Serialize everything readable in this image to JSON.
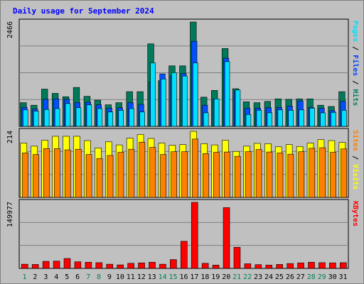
{
  "chart_data": {
    "type": "bar",
    "title": "Daily usage for September 2024",
    "days": [
      "1",
      "2",
      "3",
      "4",
      "5",
      "6",
      "7",
      "8",
      "9",
      "10",
      "11",
      "12",
      "13",
      "14",
      "15",
      "16",
      "17",
      "18",
      "19",
      "20",
      "21",
      "22",
      "23",
      "24",
      "25",
      "26",
      "27",
      "28",
      "29",
      "30",
      "31"
    ],
    "weekend_days": [
      1,
      7,
      8,
      14,
      15,
      21,
      22,
      28,
      29
    ],
    "panels": [
      {
        "id": "pages-files-hits",
        "max_label": "2466",
        "max_value": 2466,
        "side_labels": [
          {
            "text": "Pages",
            "color": "#00e0ff"
          },
          {
            "text": " / ",
            "color": "#000000"
          },
          {
            "text": "Files",
            "color": "#0040ff"
          },
          {
            "text": " / ",
            "color": "#000000"
          },
          {
            "text": "Hits",
            "color": "#008060"
          }
        ],
        "series": [
          {
            "name": "Hits",
            "color": "#007a5a",
            "values": [
              560,
              500,
              880,
              780,
              700,
              920,
              710,
              620,
              510,
              560,
              820,
              820,
              1950,
              1080,
              1430,
              1430,
              2466,
              690,
              850,
              1840,
              890,
              580,
              560,
              590,
              650,
              640,
              650,
              650,
              500,
              470,
              820
            ]
          },
          {
            "name": "Files",
            "color": "#0050ff",
            "values": [
              450,
              410,
              640,
              650,
              640,
              560,
              570,
              510,
              430,
              440,
              560,
              520,
              1050,
              1240,
              1190,
              1250,
              2010,
              500,
              650,
              1610,
              840,
              430,
              430,
              440,
              450,
              480,
              600,
              450,
              430,
              370,
              590
            ]
          },
          {
            "name": "Pages",
            "color": "#00e0ff",
            "values": [
              390,
              360,
              400,
              420,
              540,
              440,
              510,
              420,
              340,
              380,
              420,
              340,
              1500,
              1120,
              1270,
              1190,
              1500,
              320,
              650,
              1530,
              860,
              280,
              380,
              320,
              390,
              380,
              390,
              430,
              320,
              330,
              380
            ]
          }
        ]
      },
      {
        "id": "visits-sites",
        "max_label": "214",
        "max_value": 214,
        "side_labels": [
          {
            "text": "Sites",
            "color": "#ff8000"
          },
          {
            "text": " / ",
            "color": "#000000"
          },
          {
            "text": "Visits",
            "color": "#ffff00"
          }
        ],
        "series": [
          {
            "name": "Visits",
            "color": "#ffff00",
            "values": [
              176,
              166,
              185,
              198,
              198,
              198,
              184,
              160,
              180,
              170,
              192,
              204,
              191,
              176,
              169,
              171,
              214,
              174,
              170,
              185,
              149,
              166,
              175,
              174,
              164,
              171,
              165,
              176,
              187,
              184,
              178
            ]
          },
          {
            "name": "Sites",
            "color": "#ff8000",
            "values": [
              144,
              139,
              158,
              158,
              154,
              156,
              139,
              126,
              136,
              146,
              156,
              179,
              162,
              139,
              148,
              148,
              189,
              142,
              146,
              147,
              133,
              148,
              155,
              147,
              144,
              140,
              148,
              159,
              161,
              146,
              157
            ]
          }
        ]
      },
      {
        "id": "kbytes",
        "max_label": "149977",
        "max_value": 149977,
        "side_labels": [
          {
            "text": "KBytes",
            "color": "#ff0000"
          }
        ],
        "series": [
          {
            "name": "KBytes",
            "color": "#ff0000",
            "values": [
              9500,
              9000,
              16000,
              16500,
              22500,
              15000,
              14000,
              13000,
              9500,
              8000,
              11500,
              12500,
              14000,
              9500,
              20000,
              61500,
              149977,
              11500,
              7500,
              138000,
              48000,
              10500,
              8500,
              7500,
              9000,
              11000,
              12500,
              14000,
              13000,
              12500,
              13000
            ]
          }
        ]
      }
    ]
  }
}
